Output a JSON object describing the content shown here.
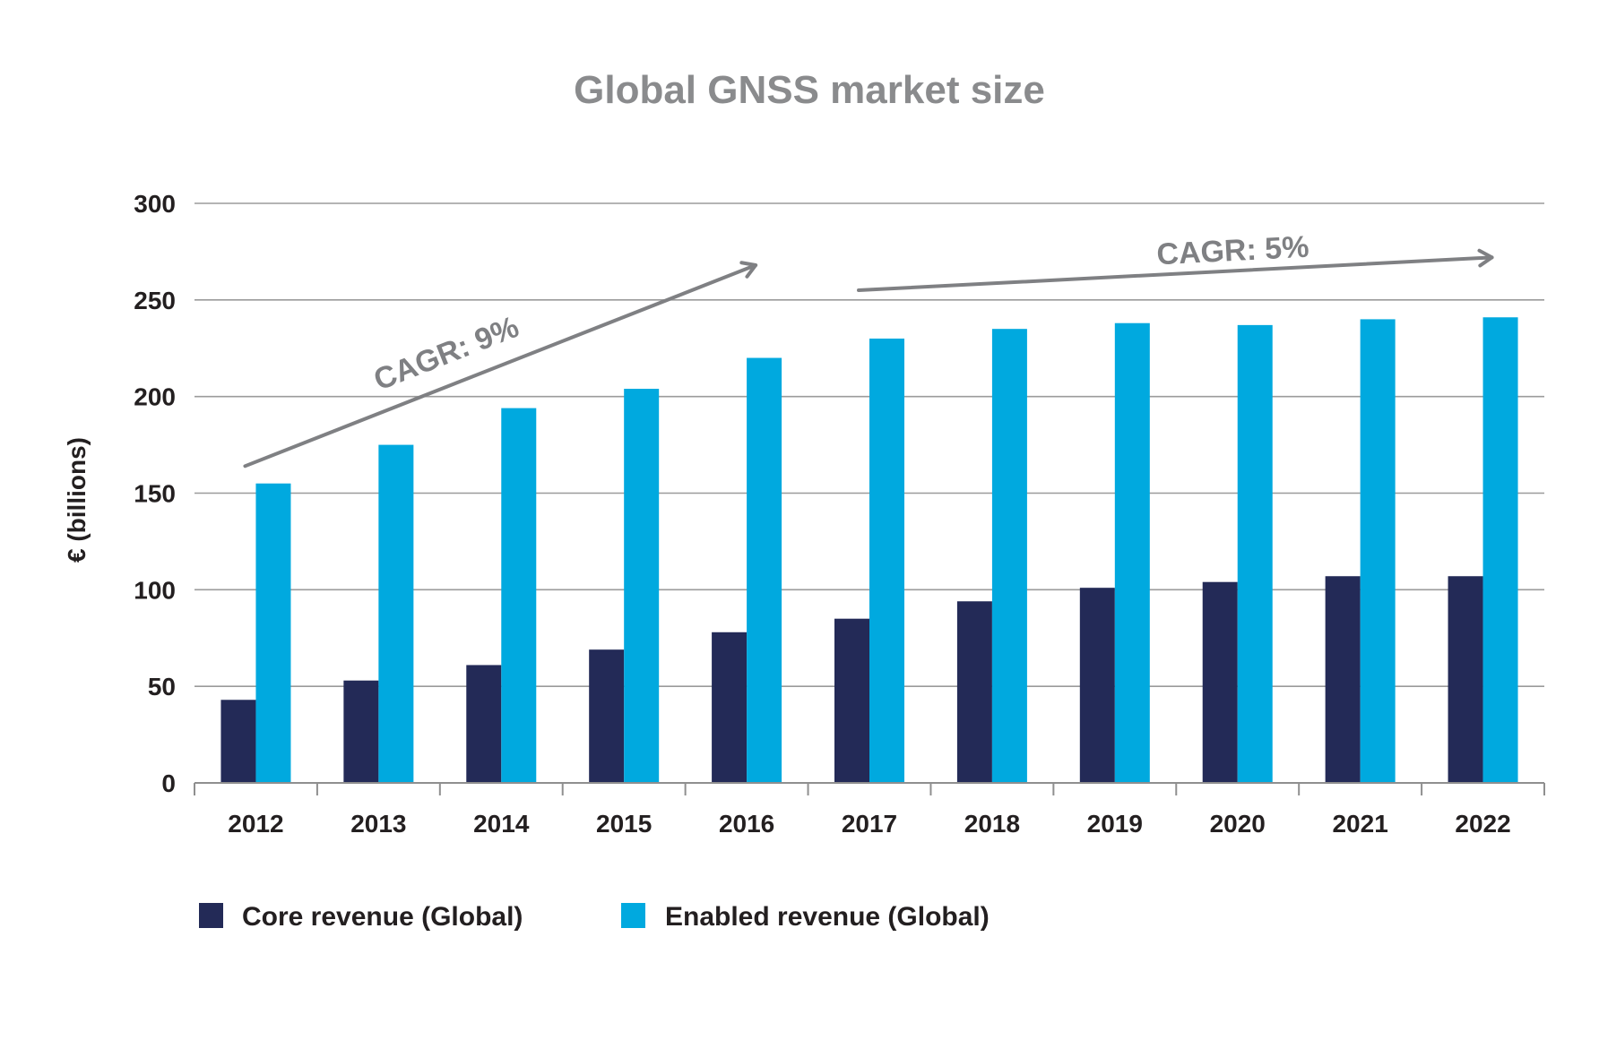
{
  "chart_data": {
    "type": "bar",
    "title": "Global GNSS market size",
    "xlabel": "",
    "ylabel": "€ (billions)",
    "categories": [
      "2012",
      "2013",
      "2014",
      "2015",
      "2016",
      "2017",
      "2018",
      "2019",
      "2020",
      "2021",
      "2022"
    ],
    "series": [
      {
        "name": "Core revenue (Global)",
        "color": "#232a57",
        "values": [
          43,
          53,
          61,
          69,
          78,
          85,
          94,
          101,
          104,
          107,
          107
        ]
      },
      {
        "name": "Enabled revenue (Global)",
        "color": "#00a9df",
        "values": [
          155,
          175,
          194,
          204,
          220,
          230,
          235,
          238,
          237,
          240,
          241
        ]
      }
    ],
    "ylim": [
      0,
      300
    ],
    "yticks": [
      "0",
      "50",
      "100",
      "150",
      "200",
      "250",
      "300"
    ],
    "grid": true,
    "legend_position": "bottom-left",
    "annotations": [
      {
        "text": "CAGR: 9%",
        "from_category": "2012",
        "to_category": "2016",
        "from_value": 164,
        "to_value": 268
      },
      {
        "text": "CAGR: 5%",
        "from_category": "2017",
        "to_category": "2022",
        "from_value": 255,
        "to_value": 272
      }
    ]
  },
  "colors": {
    "title": "#8a8b8d",
    "grid": "#9b9b9b",
    "axis": "#8f8f8f",
    "arrow": "#7f8083",
    "text": "#231f20"
  }
}
